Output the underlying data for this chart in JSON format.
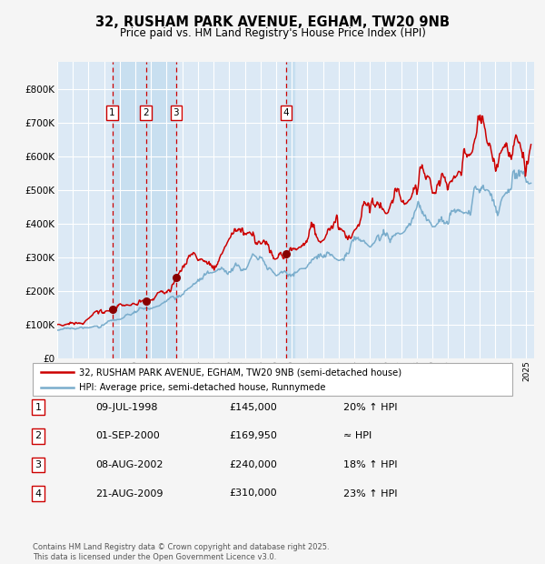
{
  "title": "32, RUSHAM PARK AVENUE, EGHAM, TW20 9NB",
  "subtitle": "Price paid vs. HM Land Registry's House Price Index (HPI)",
  "legend_red": "32, RUSHAM PARK AVENUE, EGHAM, TW20 9NB (semi-detached house)",
  "legend_blue": "HPI: Average price, semi-detached house, Runnymede",
  "footer": "Contains HM Land Registry data © Crown copyright and database right 2025.\nThis data is licensed under the Open Government Licence v3.0.",
  "xlim_start": 1995.0,
  "xlim_end": 2025.5,
  "ylim_bottom": 0,
  "ylim_top": 880000,
  "yticks": [
    0,
    100000,
    200000,
    300000,
    400000,
    500000,
    600000,
    700000,
    800000
  ],
  "ytick_labels": [
    "£0",
    "£100K",
    "£200K",
    "£300K",
    "£400K",
    "£500K",
    "£600K",
    "£700K",
    "£800K"
  ],
  "background_color": "#f5f5f5",
  "plot_bg_color": "#dce9f5",
  "grid_color": "#ffffff",
  "red_color": "#cc0000",
  "blue_color": "#7aadcc",
  "sale_marker_color": "#880000",
  "vline_color": "#cc0000",
  "transactions": [
    {
      "num": 1,
      "date_num": 1998.52,
      "price": 145000,
      "label": "09-JUL-1998",
      "amount": "£145,000",
      "pct": "20% ↑ HPI"
    },
    {
      "num": 2,
      "date_num": 2000.67,
      "price": 169950,
      "label": "01-SEP-2000",
      "amount": "£169,950",
      "pct": "≈ HPI"
    },
    {
      "num": 3,
      "date_num": 2002.6,
      "price": 240000,
      "label": "08-AUG-2002",
      "amount": "£240,000",
      "pct": "18% ↑ HPI"
    },
    {
      "num": 4,
      "date_num": 2009.64,
      "price": 310000,
      "label": "21-AUG-2009",
      "amount": "£310,000",
      "pct": "23% ↑ HPI"
    }
  ]
}
